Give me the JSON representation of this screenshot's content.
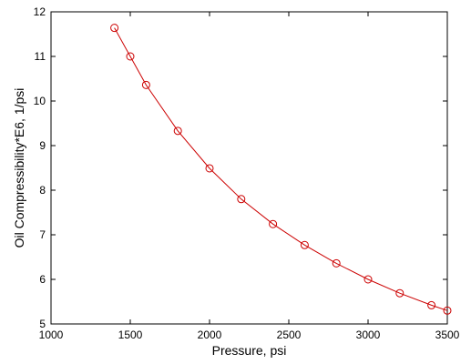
{
  "chart_data": {
    "type": "line",
    "title": "",
    "xlabel": "Pressure, psi",
    "ylabel": "Oil Compressibility*E6, 1/psi",
    "xlim": [
      1000,
      3500
    ],
    "ylim": [
      5,
      12
    ],
    "xticks": [
      1000,
      1500,
      2000,
      2500,
      3000,
      3500
    ],
    "yticks": [
      5,
      6,
      7,
      8,
      9,
      10,
      11,
      12
    ],
    "grid": false,
    "series": [
      {
        "color": "#cc0000",
        "marker": "circle",
        "x": [
          1400,
          1500,
          1600,
          1800,
          2000,
          2200,
          2400,
          2600,
          2800,
          3000,
          3200,
          3400,
          3500
        ],
        "y": [
          11.64,
          11.0,
          10.36,
          9.33,
          8.49,
          7.8,
          7.24,
          6.77,
          6.36,
          6.0,
          5.69,
          5.42,
          5.3
        ]
      }
    ]
  }
}
